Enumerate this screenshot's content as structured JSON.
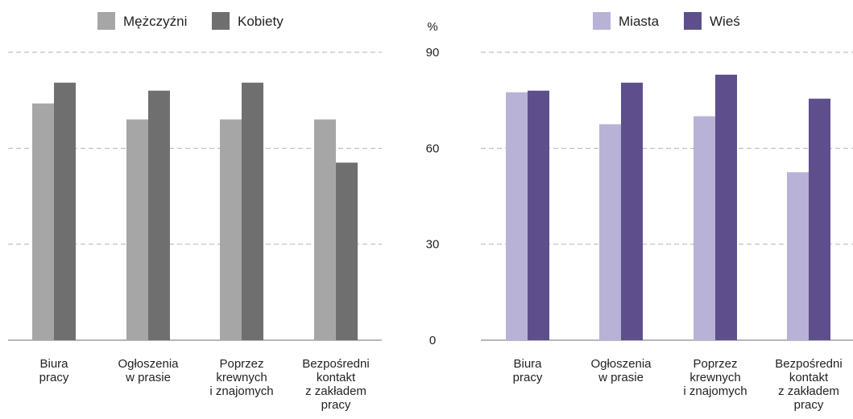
{
  "chart_data": [
    {
      "type": "bar",
      "title": "",
      "categories": [
        [
          "Biura",
          "pracy"
        ],
        [
          "Ogłoszenia",
          "w prasie"
        ],
        [
          "Poprzez",
          "krewnych",
          "i znajomych"
        ],
        [
          "Bezpośredni",
          "kontakt",
          "z zakładem",
          "pracy"
        ]
      ],
      "series": [
        {
          "name": "Mężczyźni",
          "color": "#a6a6a6",
          "values": [
            74,
            69,
            69,
            69
          ]
        },
        {
          "name": "Kobiety",
          "color": "#6f6f6f",
          "values": [
            80.5,
            78,
            80.5,
            55.5
          ]
        }
      ],
      "ylim": [
        0,
        90
      ],
      "yticks": [],
      "grid": true,
      "legend": "top-center"
    },
    {
      "type": "bar",
      "title": "",
      "ylabel": "%",
      "categories": [
        [
          "Biura",
          "pracy"
        ],
        [
          "Ogłoszenia",
          "w prasie"
        ],
        [
          "Poprzez",
          "krewnych",
          "i znajomych"
        ],
        [
          "Bezpośredni",
          "kontakt",
          "z zakładem",
          "pracy"
        ]
      ],
      "series": [
        {
          "name": "Miasta",
          "color": "#b8b2d6",
          "values": [
            77.5,
            67.5,
            70,
            52.5
          ]
        },
        {
          "name": "Wieś",
          "color": "#5e4f8c",
          "values": [
            78,
            80.5,
            83,
            75.5
          ]
        }
      ],
      "ylim": [
        0,
        90
      ],
      "yticks": [
        "0",
        "30",
        "60",
        "90"
      ],
      "grid": true,
      "legend": "top-center"
    }
  ]
}
